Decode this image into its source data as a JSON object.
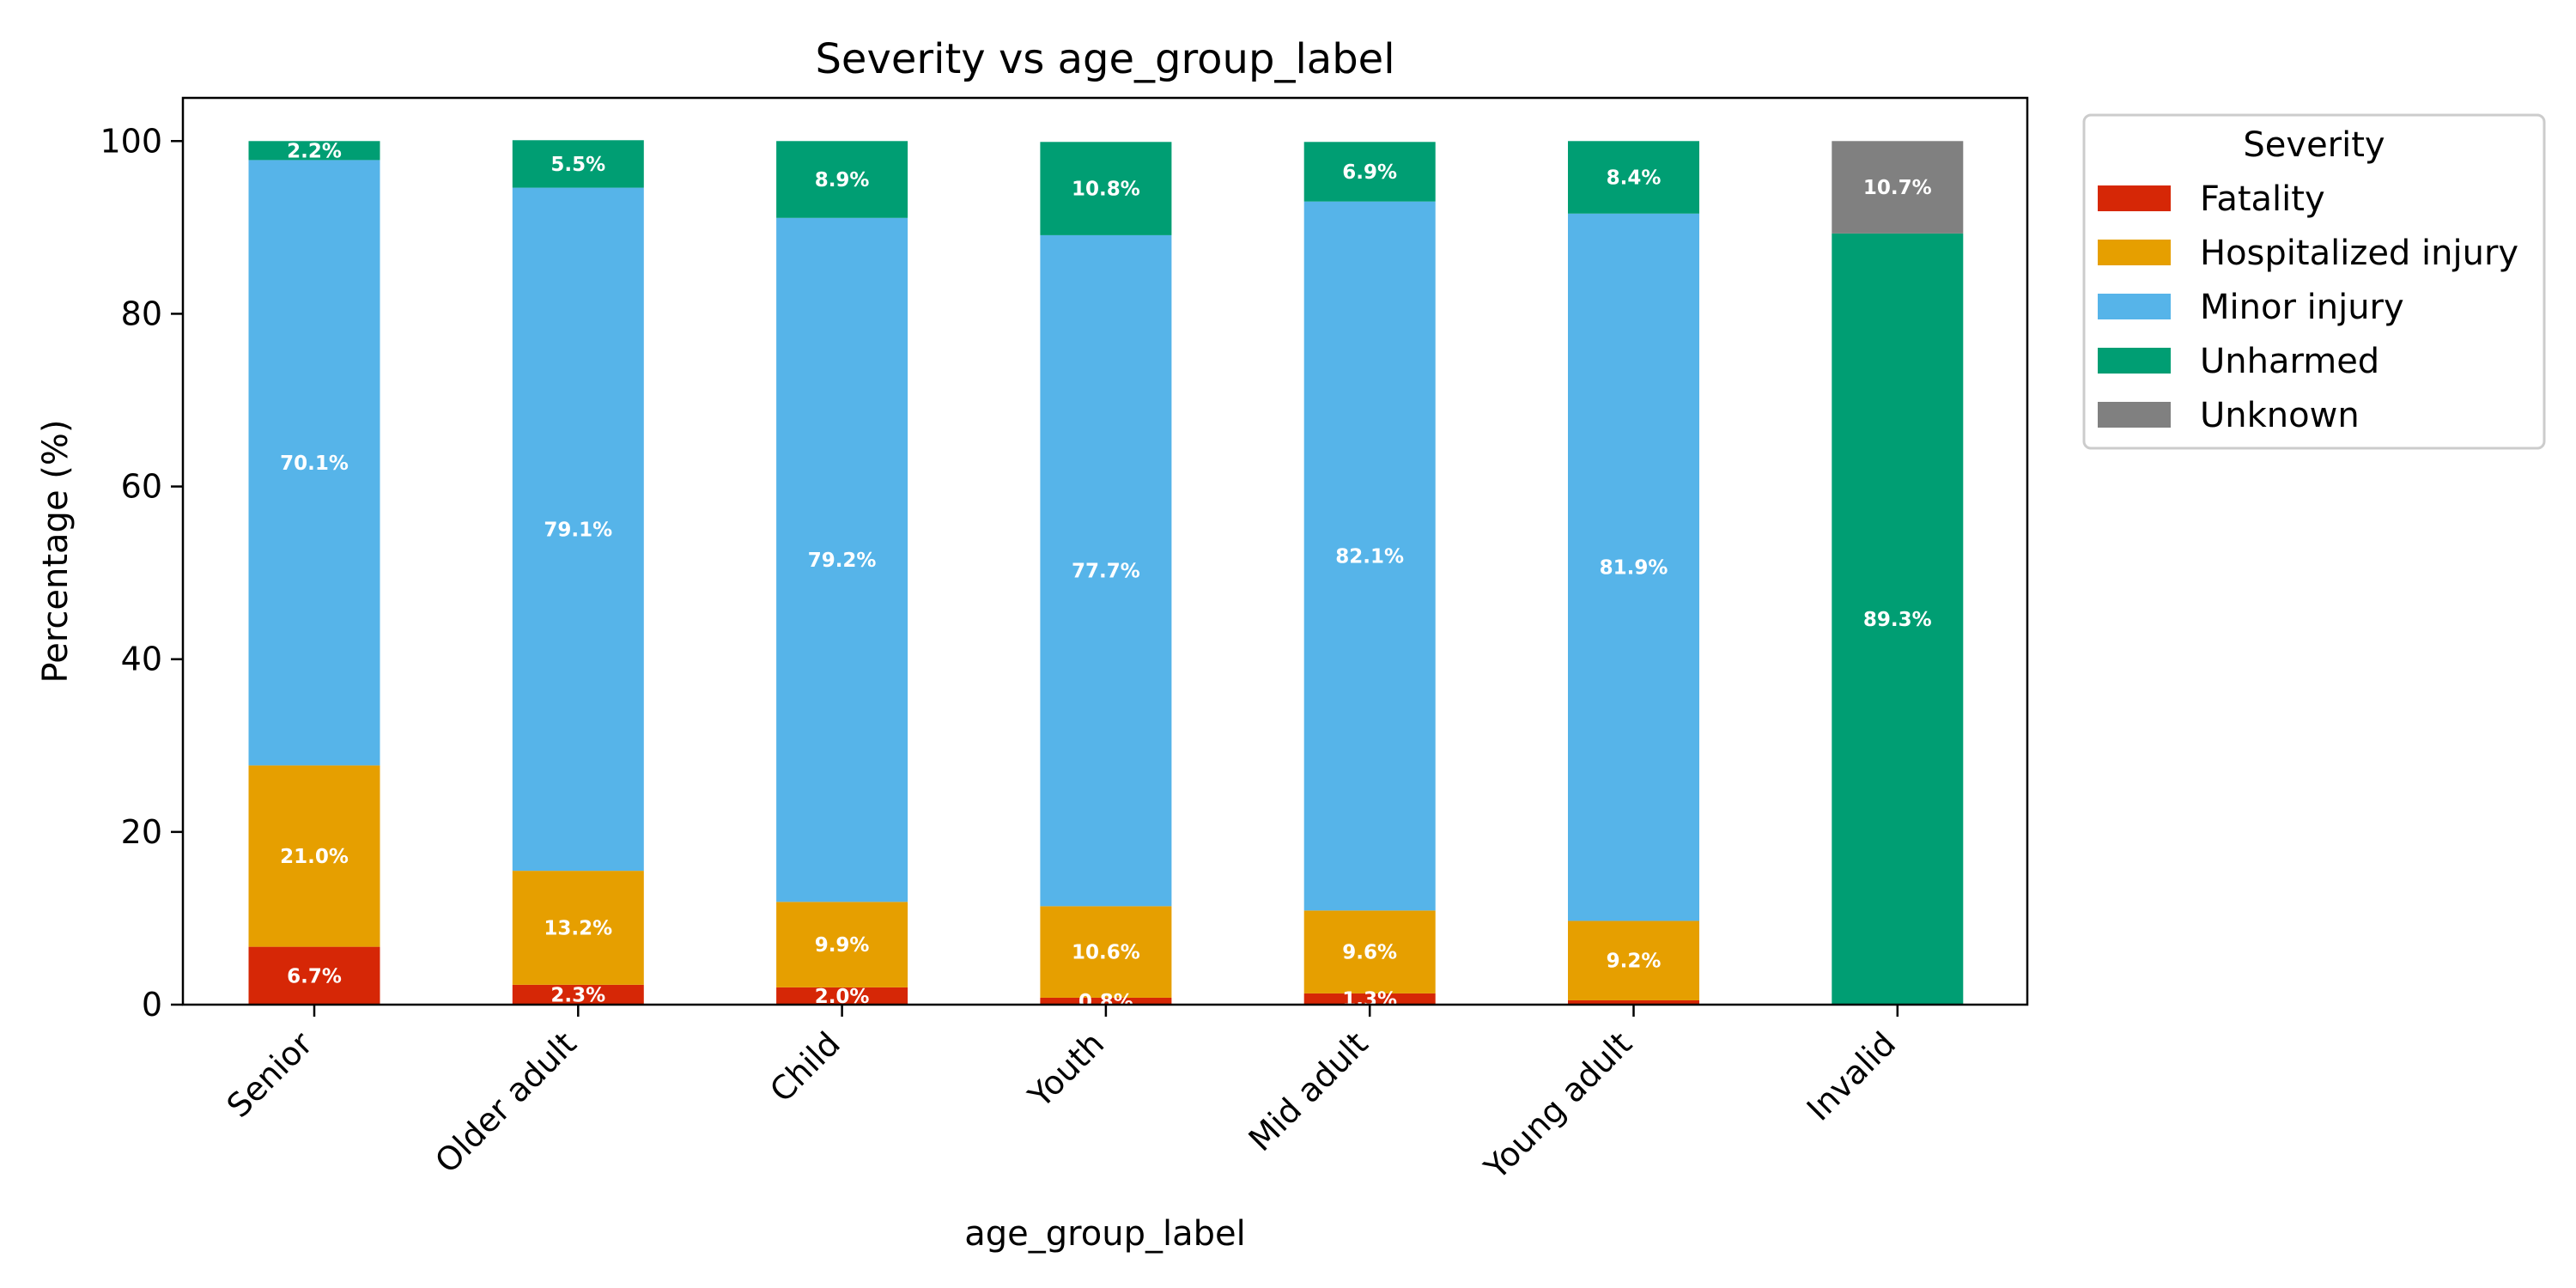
{
  "chart_data": {
    "type": "bar",
    "stacked": true,
    "title": "Severity vs age_group_label",
    "xlabel": "age_group_label",
    "ylabel": "Percentage (%)",
    "ylim": [
      0,
      105
    ],
    "yticks": [
      0,
      20,
      40,
      60,
      80,
      100
    ],
    "grid": false,
    "legend_title": "Severity",
    "legend_position": "outside-top-right",
    "categories": [
      "Senior",
      "Older adult",
      "Child",
      "Youth",
      "Mid adult",
      "Young adult",
      "Invalid"
    ],
    "series": [
      {
        "name": "Fatality",
        "color": "#d62706",
        "values": [
          6.7,
          2.3,
          2.0,
          0.8,
          1.3,
          0.5,
          0
        ],
        "labels": [
          "6.7%",
          "2.3%",
          "2.0%",
          "0.8%",
          "1.3%",
          "",
          ""
        ]
      },
      {
        "name": "Hospitalized injury",
        "color": "#e69f00",
        "values": [
          21.0,
          13.2,
          9.9,
          10.6,
          9.6,
          9.2,
          0
        ],
        "labels": [
          "21.0%",
          "13.2%",
          "9.9%",
          "10.6%",
          "9.6%",
          "9.2%",
          ""
        ]
      },
      {
        "name": "Minor injury",
        "color": "#56b4e9",
        "values": [
          70.1,
          79.1,
          79.2,
          77.7,
          82.1,
          81.9,
          0
        ],
        "labels": [
          "70.1%",
          "79.1%",
          "79.2%",
          "77.7%",
          "82.1%",
          "81.9%",
          ""
        ]
      },
      {
        "name": "Unharmed",
        "color": "#009e73",
        "values": [
          2.2,
          5.5,
          8.9,
          10.8,
          6.9,
          8.4,
          89.3
        ],
        "labels": [
          "2.2%",
          "5.5%",
          "8.9%",
          "10.8%",
          "6.9%",
          "8.4%",
          "89.3%"
        ]
      },
      {
        "name": "Unknown",
        "color": "#808080",
        "values": [
          0,
          0,
          0,
          0,
          0,
          0,
          10.7
        ],
        "labels": [
          "",
          "",
          "",
          "",
          "",
          "",
          "10.7%"
        ]
      }
    ]
  }
}
